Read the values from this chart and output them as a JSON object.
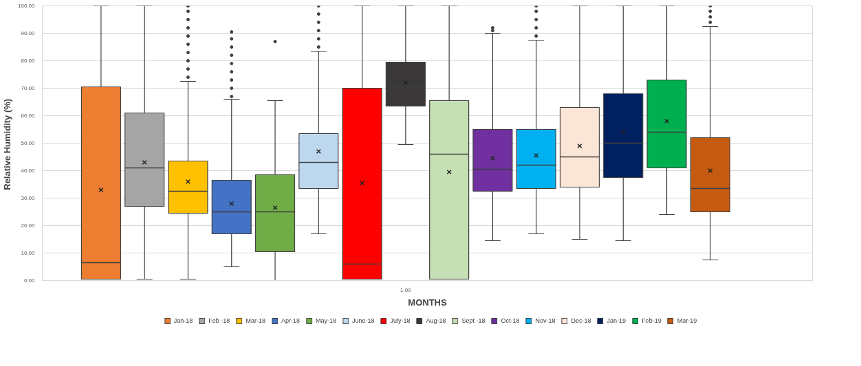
{
  "chart_data": {
    "type": "box",
    "xlabel": "MONTHS",
    "ylabel": "Relative Humidity  (%)",
    "categories": [
      "1.00"
    ],
    "ylim": [
      0,
      100
    ],
    "yticks": [
      {
        "value": 0,
        "label": "0.00"
      },
      {
        "value": 10,
        "label": "10.00"
      },
      {
        "value": 20,
        "label": "20.00"
      },
      {
        "value": 30,
        "label": "30.00"
      },
      {
        "value": 40,
        "label": "40.00"
      },
      {
        "value": 50,
        "label": "50.00"
      },
      {
        "value": 60,
        "label": "60.00"
      },
      {
        "value": 70,
        "label": "70.00"
      },
      {
        "value": 80,
        "label": "80.00"
      },
      {
        "value": 90,
        "label": "90.00"
      },
      {
        "value": 100,
        "label": "100.00"
      }
    ],
    "grid": "y",
    "legend": "bottom",
    "series": [
      {
        "name": "Jan-18",
        "color": "#ed7d31",
        "boxes": [
          {
            "low": 0.5,
            "q1": 0.5,
            "median": 6.5,
            "q3": 70.5,
            "high": 100,
            "mean": 33
          }
        ]
      },
      {
        "name": "Feb -18",
        "color": "#a5a5a5",
        "boxes": [
          {
            "low": 0.5,
            "q1": 27,
            "median": 41,
            "q3": 61,
            "high": 100,
            "mean": 43
          }
        ]
      },
      {
        "name": "Mar-18",
        "color": "#ffc000",
        "boxes": [
          {
            "low": 0.5,
            "q1": 24.5,
            "median": 32.5,
            "q3": 43.5,
            "high": 72.5,
            "mean": 36,
            "outliers": [
              74,
              77,
              80,
              83,
              86,
              89,
              92,
              95,
              98,
              100
            ]
          }
        ]
      },
      {
        "name": "Apr-18",
        "color": "#4472c4",
        "boxes": [
          {
            "low": 5,
            "q1": 17,
            "median": 25,
            "q3": 36.5,
            "high": 66,
            "mean": 28,
            "outliers": [
              67,
              70,
              73,
              76,
              79,
              82,
              85,
              88,
              90.5
            ]
          }
        ]
      },
      {
        "name": "May-18",
        "color": "#70ad47",
        "boxes": [
          {
            "low": 0,
            "q1": 10.5,
            "median": 25,
            "q3": 38.5,
            "high": 65.5,
            "mean": 26.5,
            "outliers": [
              87
            ]
          }
        ]
      },
      {
        "name": "June-18",
        "color": "#bdd7ee",
        "boxes": [
          {
            "low": 17,
            "q1": 33.5,
            "median": 43,
            "q3": 53.5,
            "high": 83.5,
            "mean": 47,
            "outliers": [
              85,
              88,
              91,
              94,
              97,
              100
            ]
          }
        ]
      },
      {
        "name": "July-18",
        "color": "#ff0000",
        "boxes": [
          {
            "low": 0.5,
            "q1": 0.5,
            "median": 6,
            "q3": 70,
            "high": 100,
            "mean": 35.5
          }
        ]
      },
      {
        "name": "Aug-18",
        "color": "#3a3838",
        "boxes": [
          {
            "low": 49.5,
            "q1": 63.5,
            "median": 70.5,
            "q3": 79.5,
            "high": 100,
            "mean": 72
          }
        ]
      },
      {
        "name": "Sept -18",
        "color": "#c5e0b4",
        "boxes": [
          {
            "low": 0.5,
            "q1": 0.5,
            "median": 46,
            "q3": 65.5,
            "high": 100,
            "mean": 39.5
          }
        ]
      },
      {
        "name": "Oct-18",
        "color": "#7030a0",
        "boxes": [
          {
            "low": 14.5,
            "q1": 32.5,
            "median": 40.5,
            "q3": 55,
            "high": 90,
            "mean": 44.5,
            "outliers": [
              91,
              92
            ]
          }
        ]
      },
      {
        "name": "Nov-18",
        "color": "#00b0f0",
        "boxes": [
          {
            "low": 17,
            "q1": 33.5,
            "median": 42,
            "q3": 55,
            "high": 87.5,
            "mean": 45.5,
            "outliers": [
              89,
              92,
              95,
              98,
              100
            ]
          }
        ]
      },
      {
        "name": "Dec-18",
        "color": "#fbe5d6",
        "boxes": [
          {
            "low": 15,
            "q1": 34,
            "median": 45,
            "q3": 63,
            "high": 100,
            "mean": 49
          }
        ]
      },
      {
        "name": "Jan-19",
        "color": "#002060",
        "boxes": [
          {
            "low": 14.5,
            "q1": 37.5,
            "median": 50,
            "q3": 68,
            "high": 100,
            "mean": 54
          }
        ]
      },
      {
        "name": "Feb-19",
        "color": "#00b050",
        "boxes": [
          {
            "low": 24,
            "q1": 41,
            "median": 54,
            "q3": 73,
            "high": 100,
            "mean": 58
          }
        ]
      },
      {
        "name": "Mar-19",
        "color": "#c55a11",
        "boxes": [
          {
            "low": 7.5,
            "q1": 25,
            "median": 33.5,
            "q3": 52,
            "high": 92.5,
            "mean": 40,
            "outliers": [
              94,
              96,
              98,
              100
            ]
          }
        ]
      }
    ]
  }
}
